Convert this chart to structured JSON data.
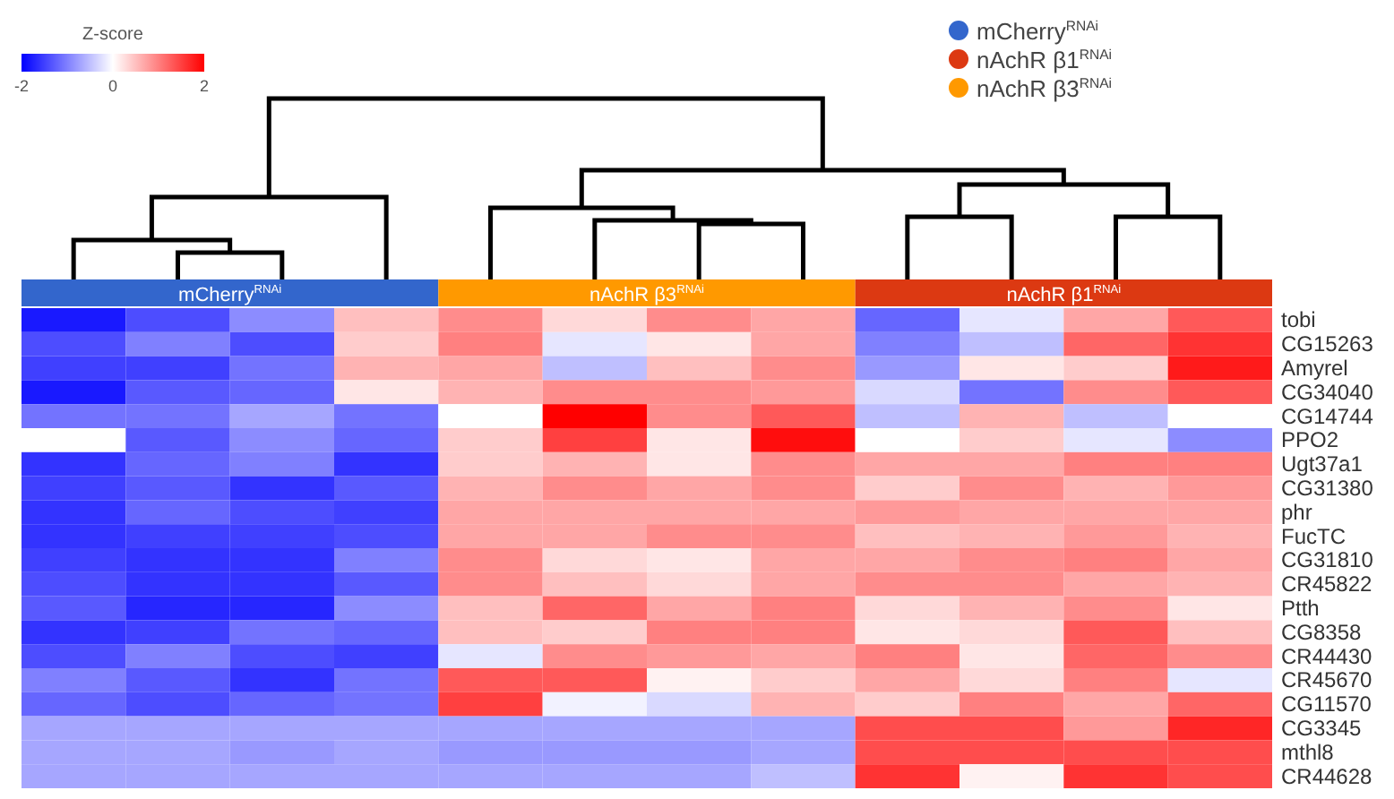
{
  "chart_data": {
    "type": "heatmap",
    "clabel": "Z-score",
    "clim": [
      -2,
      2
    ],
    "cticks": [
      -2,
      0,
      2
    ],
    "annotations": [
      "mCherry$^{RNAi}$",
      "nAchR β1$^{RNAi}$",
      "nAchR β3$^{RNAi}$",
      "mCherry$^{RNAi}$",
      "nAchR β3$^{RNAi}$",
      "nAchR β1$^{RNAi}$"
    ],
    "categories": [
      null,
      null,
      null,
      null,
      null,
      null,
      null,
      null,
      null,
      null,
      null,
      null
    ],
    "y_categories": [
      "tobi",
      "CG15263",
      "Amyrel",
      "CG34040",
      "CG14744",
      "PPO2",
      "Ugt37a1",
      "CG31380",
      "phr",
      "FucTC",
      "CG31810",
      "CR45822",
      "Ptth",
      "CG8358",
      "CR44430",
      "CR45670",
      "CG11570",
      "CG3345",
      "mthl8",
      "CR44628"
    ],
    "cells": [
      [
        -1.8,
        -1.4,
        -0.9,
        0.5,
        0.9,
        0.3,
        0.9,
        0.7,
        -1.2,
        -0.2,
        0.7,
        1.3
      ],
      [
        -1.4,
        -1.0,
        -1.4,
        0.4,
        1.0,
        -0.2,
        0.2,
        0.7,
        -1.0,
        -0.5,
        1.2,
        1.6
      ],
      [
        -1.5,
        -1.5,
        -1.1,
        0.6,
        0.7,
        -0.5,
        0.5,
        0.9,
        -0.8,
        0.2,
        0.4,
        1.8
      ],
      [
        -1.8,
        -1.3,
        -1.2,
        0.2,
        0.6,
        0.9,
        0.9,
        0.8,
        -0.3,
        -1.1,
        0.9,
        1.3
      ],
      [
        -1.1,
        -1.1,
        -0.7,
        -1.1,
        0.0,
        2.0,
        0.9,
        1.3,
        -0.5,
        0.6,
        -0.5,
        0.0
      ],
      [
        0.0,
        -1.3,
        -0.9,
        -1.2,
        0.4,
        1.5,
        0.2,
        1.9,
        0.0,
        0.4,
        -0.2,
        -0.9
      ],
      [
        -1.6,
        -1.2,
        -1.0,
        -1.6,
        0.4,
        0.6,
        0.2,
        0.9,
        0.7,
        0.7,
        1.0,
        1.0
      ],
      [
        -1.5,
        -1.3,
        -1.6,
        -1.3,
        0.6,
        0.9,
        0.7,
        0.9,
        0.4,
        0.9,
        0.6,
        0.8
      ],
      [
        -1.6,
        -1.2,
        -1.4,
        -1.5,
        0.7,
        0.7,
        0.7,
        0.7,
        0.8,
        0.7,
        0.7,
        0.7
      ],
      [
        -1.6,
        -1.5,
        -1.5,
        -1.4,
        0.7,
        0.7,
        0.9,
        0.9,
        0.5,
        0.6,
        0.8,
        0.6
      ],
      [
        -1.5,
        -1.6,
        -1.6,
        -1.0,
        0.9,
        0.3,
        0.2,
        0.7,
        0.7,
        0.9,
        1.0,
        0.7
      ],
      [
        -1.4,
        -1.6,
        -1.6,
        -1.3,
        0.9,
        0.5,
        0.3,
        0.7,
        0.9,
        0.9,
        0.7,
        0.6
      ],
      [
        -1.3,
        -1.7,
        -1.7,
        -0.9,
        0.5,
        1.2,
        0.7,
        1.0,
        0.3,
        0.6,
        0.9,
        0.2
      ],
      [
        -1.6,
        -1.5,
        -1.1,
        -1.2,
        0.5,
        0.4,
        1.0,
        1.0,
        0.2,
        0.3,
        1.3,
        0.5
      ],
      [
        -1.4,
        -1.0,
        -1.4,
        -1.5,
        -0.2,
        0.9,
        0.8,
        0.7,
        1.0,
        0.2,
        1.2,
        0.9
      ],
      [
        -1.0,
        -1.3,
        -1.6,
        -1.1,
        1.3,
        1.3,
        0.1,
        0.4,
        0.7,
        0.3,
        1.0,
        -0.2
      ],
      [
        -1.2,
        -1.4,
        -1.2,
        -1.1,
        1.5,
        -0.1,
        -0.3,
        0.6,
        0.4,
        1.0,
        0.7,
        1.2
      ],
      [
        -0.7,
        -0.7,
        -0.7,
        -0.7,
        -0.7,
        -0.7,
        -0.7,
        -0.7,
        1.4,
        1.4,
        0.8,
        1.7
      ],
      [
        -0.7,
        -0.7,
        -0.8,
        -0.7,
        -0.8,
        -0.8,
        -0.8,
        -0.7,
        1.4,
        1.4,
        1.4,
        1.4
      ],
      [
        -0.7,
        -0.7,
        -0.7,
        -0.7,
        -0.7,
        -0.7,
        -0.7,
        -0.5,
        1.6,
        0.1,
        1.6,
        1.4
      ]
    ]
  }
}
